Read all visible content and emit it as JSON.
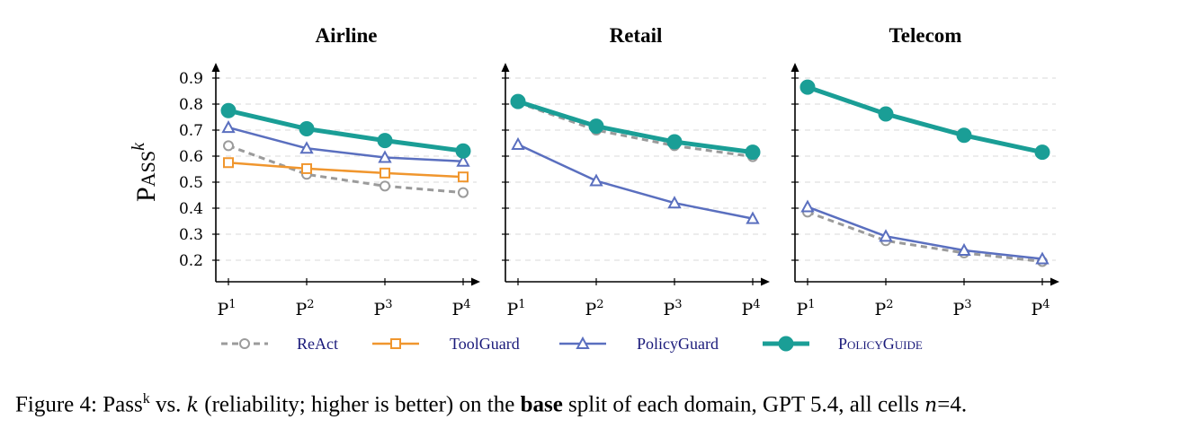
{
  "chart_data": [
    {
      "type": "line",
      "title": "Airline",
      "ylabel": "Pass^k",
      "x": [
        "P1",
        "P2",
        "P3",
        "P4"
      ],
      "ylim": [
        0.13,
        0.95
      ],
      "yticks": [
        0.2,
        0.3,
        0.4,
        0.5,
        0.6,
        0.7,
        0.8,
        0.9
      ],
      "grid": "horizontal dashed",
      "series": [
        {
          "name": "ReAct",
          "values": [
            0.64,
            0.53,
            0.485,
            0.46
          ]
        },
        {
          "name": "ToolGuard",
          "values": [
            0.575,
            0.552,
            0.535,
            0.52
          ]
        },
        {
          "name": "PolicyGuard",
          "values": [
            0.71,
            0.63,
            0.595,
            0.58
          ]
        },
        {
          "name": "PolicyGuide",
          "values": [
            0.775,
            0.705,
            0.66,
            0.62
          ]
        }
      ]
    },
    {
      "type": "line",
      "title": "Retail",
      "x": [
        "P1",
        "P2",
        "P3",
        "P4"
      ],
      "ylim": [
        0.13,
        0.95
      ],
      "yticks": [
        0.2,
        0.3,
        0.4,
        0.5,
        0.6,
        0.7,
        0.8,
        0.9
      ],
      "grid": "horizontal dashed",
      "series": [
        {
          "name": "ReAct",
          "values": [
            0.805,
            0.7,
            0.64,
            0.598
          ]
        },
        {
          "name": "PolicyGuard",
          "values": [
            0.645,
            0.505,
            0.42,
            0.36
          ]
        },
        {
          "name": "PolicyGuide",
          "values": [
            0.81,
            0.715,
            0.655,
            0.615
          ]
        }
      ]
    },
    {
      "type": "line",
      "title": "Telecom",
      "x": [
        "P1",
        "P2",
        "P3",
        "P4"
      ],
      "ylim": [
        0.13,
        0.95
      ],
      "yticks": [
        0.2,
        0.3,
        0.4,
        0.5,
        0.6,
        0.7,
        0.8,
        0.9
      ],
      "grid": "horizontal dashed",
      "series": [
        {
          "name": "ReAct",
          "values": [
            0.385,
            0.275,
            0.228,
            0.195
          ]
        },
        {
          "name": "PolicyGuard",
          "values": [
            0.405,
            0.292,
            0.238,
            0.205
          ]
        },
        {
          "name": "PolicyGuide",
          "values": [
            0.865,
            0.762,
            0.68,
            0.615
          ]
        }
      ]
    }
  ],
  "ytick_labels": [
    "0.2",
    "0.3",
    "0.4",
    "0.5",
    "0.6",
    "0.7",
    "0.8",
    "0.9"
  ],
  "xtick_labels": [
    {
      "base": "P",
      "sup": "1"
    },
    {
      "base": "P",
      "sup": "2"
    },
    {
      "base": "P",
      "sup": "3"
    },
    {
      "base": "P",
      "sup": "4"
    }
  ],
  "ylabel": {
    "base": "Pass",
    "sup": "k"
  },
  "legend": [
    {
      "name": "ReAct",
      "color": "#9b9b9b",
      "marker": "circle",
      "dashed": true,
      "filled": false
    },
    {
      "name": "ToolGuard",
      "color": "#f0962e",
      "marker": "square",
      "dashed": false,
      "filled": false
    },
    {
      "name": "PolicyGuard",
      "color": "#5a6fbf",
      "marker": "triangle",
      "dashed": false,
      "filled": false
    },
    {
      "name": "PolicyGuide",
      "color": "#1a9e96",
      "marker": "circle",
      "dashed": false,
      "filled": true
    }
  ],
  "caption": {
    "prefix": "Figure 4: Pass",
    "sup": "k",
    "mid1": " vs. ",
    "var_k": "k",
    "mid2": " (reliability; higher is better) on the ",
    "bold": "base",
    "mid3": " split of each domain, GPT 5.4, all cells ",
    "var_n": "n",
    "suffix": "=4."
  }
}
